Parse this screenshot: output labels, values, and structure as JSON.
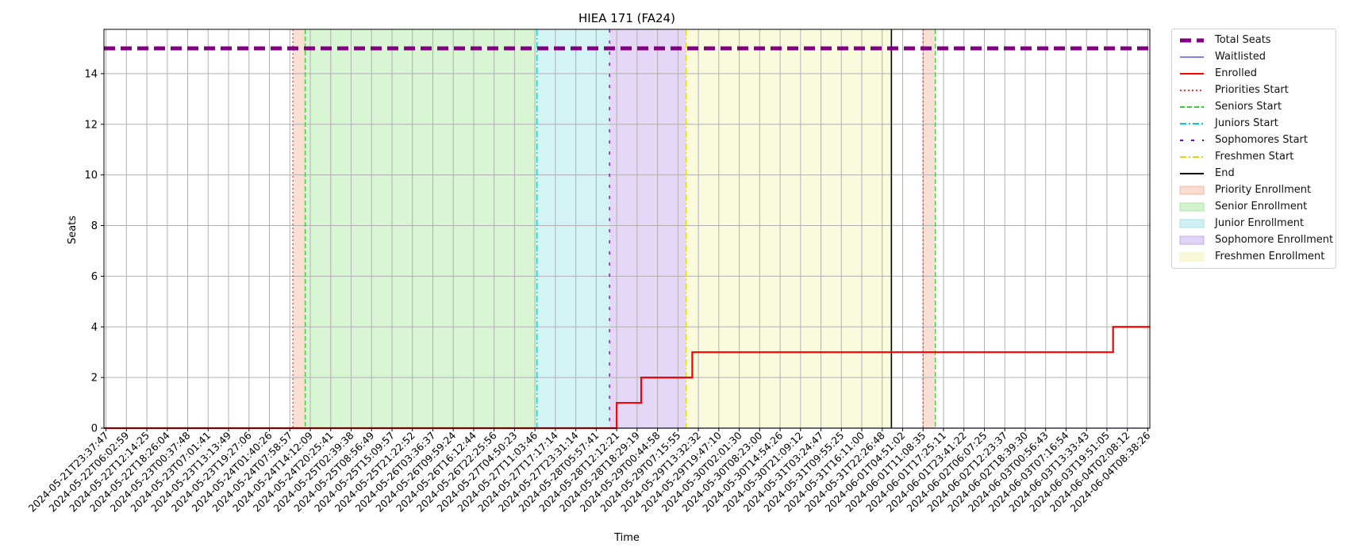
{
  "chart_data": {
    "type": "line",
    "title": "HIEA 171 (FA24)",
    "xlabel": "Time",
    "ylabel": "Seats",
    "ylim": [
      0,
      15.75
    ],
    "yticks": [
      0,
      2,
      4,
      6,
      8,
      10,
      12,
      14
    ],
    "grid": true,
    "legend_position": "outside-right",
    "x_tick_labels": [
      "2024-05-21T23:37:47",
      "2024-05-22T06:02:59",
      "2024-05-22T12:14:25",
      "2024-05-22T18:26:04",
      "2024-05-23T00:37:48",
      "2024-05-23T07:01:41",
      "2024-05-23T13:13:49",
      "2024-05-23T19:27:06",
      "2024-05-24T01:40:26",
      "2024-05-24T07:58:57",
      "2024-05-24T14:12:09",
      "2024-05-24T20:25:41",
      "2024-05-25T02:39:38",
      "2024-05-25T08:56:49",
      "2024-05-25T15:09:57",
      "2024-05-25T21:22:52",
      "2024-05-26T03:36:37",
      "2024-05-26T09:59:24",
      "2024-05-26T16:12:44",
      "2024-05-26T22:25:56",
      "2024-05-27T04:50:23",
      "2024-05-27T11:03:46",
      "2024-05-27T17:17:14",
      "2024-05-27T23:31:14",
      "2024-05-28T05:57:41",
      "2024-05-28T12:12:21",
      "2024-05-28T18:29:19",
      "2024-05-29T00:44:58",
      "2024-05-29T07:15:55",
      "2024-05-29T13:32:32",
      "2024-05-29T19:47:10",
      "2024-05-30T02:01:30",
      "2024-05-30T08:23:00",
      "2024-05-30T14:54:26",
      "2024-05-30T21:09:12",
      "2024-05-31T03:24:47",
      "2024-05-31T09:55:25",
      "2024-05-31T16:11:00",
      "2024-05-31T22:26:48",
      "2024-06-01T04:51:02",
      "2024-06-01T11:08:35",
      "2024-06-01T17:25:11",
      "2024-06-01T23:41:22",
      "2024-06-02T06:07:25",
      "2024-06-02T12:23:37",
      "2024-06-02T18:39:30",
      "2024-06-03T00:56:43",
      "2024-06-03T07:16:54",
      "2024-06-03T13:33:43",
      "2024-06-03T19:51:05",
      "2024-06-04T02:08:12",
      "2024-06-04T08:38:26"
    ],
    "x_range": [
      -0.1,
      51.1
    ],
    "series": [
      {
        "name": "Total Seats",
        "color": "#800080",
        "style": "dashed-thick",
        "points": [
          [
            -0.1,
            15
          ],
          [
            51.1,
            15
          ]
        ]
      },
      {
        "name": "Waitlisted",
        "color": "#3333ff",
        "style": "solid-thin",
        "points": [
          [
            -0.1,
            0
          ],
          [
            51.1,
            0
          ]
        ]
      },
      {
        "name": "Enrolled",
        "color": "#ff0000",
        "style": "solid",
        "points": [
          [
            -0.1,
            0
          ],
          [
            25.0,
            0
          ],
          [
            25.0,
            1
          ],
          [
            26.2,
            1
          ],
          [
            26.2,
            2
          ],
          [
            28.7,
            2
          ],
          [
            28.7,
            3
          ],
          [
            49.3,
            3
          ],
          [
            49.3,
            4
          ],
          [
            51.1,
            4
          ]
        ]
      }
    ],
    "markers": [
      {
        "name": "Priorities Start",
        "x": 9.15,
        "color": "#ff3333",
        "style": "dotted"
      },
      {
        "name": "Seniors Start",
        "x": 9.75,
        "color": "#33cc33",
        "style": "dashed"
      },
      {
        "name": "Juniors Start",
        "x": 21.1,
        "color": "#00cccc",
        "style": "dashdot"
      },
      {
        "name": "Sophomores Start",
        "x": 24.65,
        "color": "#6600cc",
        "style": "loose-dash"
      },
      {
        "name": "Freshmen Start",
        "x": 28.4,
        "color": "#dddd00",
        "style": "dashdot"
      },
      {
        "name": "End",
        "x": 38.45,
        "color": "#000000",
        "style": "solid"
      },
      {
        "name": "Priorities Start",
        "x": 40.0,
        "color": "#ff3333",
        "style": "dotted",
        "legend": false
      },
      {
        "name": "Seniors Start",
        "x": 40.6,
        "color": "#33cc33",
        "style": "dashed",
        "legend": false
      }
    ],
    "spans": [
      {
        "name": "Priority Enrollment",
        "x0": 9.15,
        "x1": 9.75,
        "color": "#f4b8a0"
      },
      {
        "name": "Senior Enrollment",
        "x0": 9.75,
        "x1": 21.1,
        "color": "#a8e8a0"
      },
      {
        "name": "Junior Enrollment",
        "x0": 21.1,
        "x1": 24.65,
        "color": "#a0e4e8"
      },
      {
        "name": "Sophomore Enrollment",
        "x0": 24.65,
        "x1": 28.4,
        "color": "#c4a8ec"
      },
      {
        "name": "Freshmen Enrollment",
        "x0": 28.4,
        "x1": 38.45,
        "color": "#f4f4b4"
      },
      {
        "name": "Priority Enrollment",
        "x0": 40.0,
        "x1": 40.6,
        "color": "#f4b8a0",
        "legend": false
      }
    ]
  },
  "legend": {
    "items": [
      {
        "label": "Total Seats",
        "kind": "line",
        "color": "#800080",
        "style": "dashed-thick"
      },
      {
        "label": "Waitlisted",
        "kind": "line",
        "color": "#3333ff",
        "style": "solid-thin"
      },
      {
        "label": "Enrolled",
        "kind": "line",
        "color": "#ff0000",
        "style": "solid"
      },
      {
        "label": "Priorities Start",
        "kind": "line",
        "color": "#ff3333",
        "style": "dotted"
      },
      {
        "label": "Seniors Start",
        "kind": "line",
        "color": "#33cc33",
        "style": "dashed"
      },
      {
        "label": "Juniors Start",
        "kind": "line",
        "color": "#00cccc",
        "style": "dashdot"
      },
      {
        "label": "Sophomores Start",
        "kind": "line",
        "color": "#6600cc",
        "style": "loose-dash"
      },
      {
        "label": "Freshmen Start",
        "kind": "line",
        "color": "#dddd00",
        "style": "dashdot"
      },
      {
        "label": "End",
        "kind": "line",
        "color": "#000000",
        "style": "solid"
      },
      {
        "label": "Priority Enrollment",
        "kind": "patch",
        "color": "#f4b8a0"
      },
      {
        "label": "Senior Enrollment",
        "kind": "patch",
        "color": "#a8e8a0"
      },
      {
        "label": "Junior Enrollment",
        "kind": "patch",
        "color": "#a0e4e8"
      },
      {
        "label": "Sophomore Enrollment",
        "kind": "patch",
        "color": "#c4a8ec"
      },
      {
        "label": "Freshmen Enrollment",
        "kind": "patch",
        "color": "#f4f4b4"
      }
    ]
  }
}
